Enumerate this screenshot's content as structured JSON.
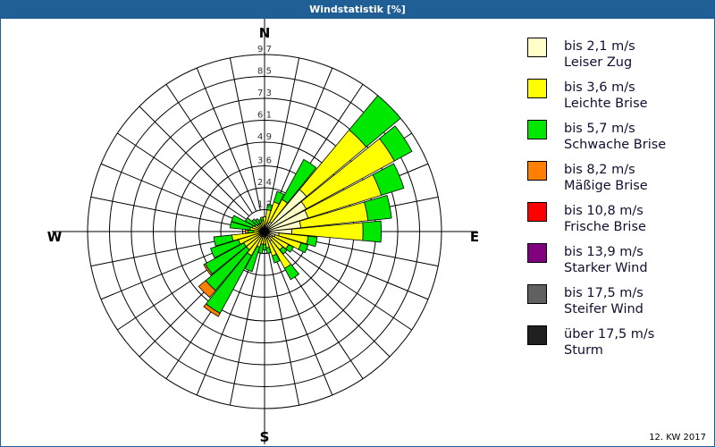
{
  "title": "Windstatistik [%]",
  "footer": "12. KW 2017",
  "chart_data": {
    "type": "wind-rose",
    "title": "Windstatistik [%]",
    "compass": {
      "n": "N",
      "e": "E",
      "s": "S",
      "w": "W"
    },
    "ring_labels": [
      "1,2",
      "2,4",
      "3,6",
      "4,9",
      "6,1",
      "7,3",
      "8,5",
      "9,7"
    ],
    "ring_values": [
      1.2,
      2.4,
      3.6,
      4.9,
      6.1,
      7.3,
      8.5,
      9.7
    ],
    "rmax": 9.7,
    "sector_count": 32,
    "classes": [
      {
        "range": "bis 2,1 m/s",
        "name": "Leiser Zug",
        "color": "#ffffc8"
      },
      {
        "range": "bis 3,6 m/s",
        "name": "Leichte Brise",
        "color": "#ffff00"
      },
      {
        "range": "bis 5,7 m/s",
        "name": "Schwache Brise",
        "color": "#00e800"
      },
      {
        "range": "bis 8,2 m/s",
        "name": "Mäßige Brise",
        "color": "#ff8000"
      },
      {
        "range": "bis 10,8 m/s",
        "name": "Frische Brise",
        "color": "#ff0000"
      },
      {
        "range": "bis 13,9 m/s",
        "name": "Starker Wind",
        "color": "#800080"
      },
      {
        "range": "bis 17,5 m/s",
        "name": "Steifer Wind",
        "color": "#606060"
      },
      {
        "range": "über 17,5 m/s",
        "name": "Sturm",
        "color": "#202020"
      }
    ],
    "sectors": [
      {
        "dir": 0,
        "values": [
          0.3,
          0.5,
          0.0,
          0.0
        ]
      },
      {
        "dir": 11.25,
        "values": [
          0.4,
          0.8,
          0.3,
          0.0
        ]
      },
      {
        "dir": 22.5,
        "values": [
          0.5,
          1.2,
          0.6,
          0.0
        ]
      },
      {
        "dir": 33.75,
        "values": [
          0.6,
          1.4,
          2.5,
          0.0
        ]
      },
      {
        "dir": 45,
        "values": [
          3.0,
          4.25,
          2.45,
          0.0
        ]
      },
      {
        "dir": 56.25,
        "values": [
          2.6,
          5.5,
          1.1,
          0.0
        ]
      },
      {
        "dir": 67.5,
        "values": [
          2.5,
          4.2,
          1.3,
          0.0
        ]
      },
      {
        "dir": 78.75,
        "values": [
          2.0,
          3.7,
          1.3,
          0.0
        ]
      },
      {
        "dir": 90,
        "values": [
          1.5,
          3.9,
          1.0,
          0.0
        ]
      },
      {
        "dir": 101.25,
        "values": [
          0.8,
          1.6,
          0.5,
          0.0
        ]
      },
      {
        "dir": 112.5,
        "values": [
          0.6,
          1.5,
          0.4,
          0.0
        ]
      },
      {
        "dir": 123.75,
        "values": [
          0.5,
          1.0,
          0.3,
          0.0
        ]
      },
      {
        "dir": 135,
        "values": [
          0.4,
          0.9,
          0.3,
          0.0
        ]
      },
      {
        "dir": 146.25,
        "values": [
          0.6,
          1.7,
          0.7,
          0.0
        ]
      },
      {
        "dir": 157.5,
        "values": [
          0.4,
          1.0,
          0.4,
          0.0
        ]
      },
      {
        "dir": 168.75,
        "values": [
          0.3,
          0.6,
          0.3,
          0.0
        ]
      },
      {
        "dir": 180,
        "values": [
          0.2,
          0.5,
          0.3,
          0.0
        ]
      },
      {
        "dir": 191.25,
        "values": [
          0.2,
          0.5,
          0.5,
          0.0
        ]
      },
      {
        "dir": 202.5,
        "values": [
          0.3,
          0.6,
          1.4,
          0.0
        ]
      },
      {
        "dir": 213.75,
        "values": [
          0.3,
          1.2,
          3.6,
          0.2
        ]
      },
      {
        "dir": 225,
        "values": [
          0.3,
          1.0,
          2.9,
          0.5
        ]
      },
      {
        "dir": 236.25,
        "values": [
          0.3,
          1.0,
          2.4,
          0.1
        ]
      },
      {
        "dir": 247.5,
        "values": [
          0.3,
          1.2,
          1.6,
          0.0
        ]
      },
      {
        "dir": 258.75,
        "values": [
          0.3,
          1.5,
          1.0,
          0.0
        ]
      },
      {
        "dir": 270,
        "values": [
          0.2,
          0.4,
          0.3,
          0.15
        ]
      },
      {
        "dir": 281.25,
        "values": [
          0.2,
          0.6,
          1.1,
          0.0
        ]
      },
      {
        "dir": 292.5,
        "values": [
          0.2,
          0.5,
          1.2,
          0.0
        ]
      },
      {
        "dir": 303.75,
        "values": [
          0.2,
          0.4,
          0.6,
          0.0
        ]
      },
      {
        "dir": 315,
        "values": [
          0.2,
          0.3,
          0.4,
          0.0
        ]
      },
      {
        "dir": 326.25,
        "values": [
          0.2,
          0.3,
          0.3,
          0.0
        ]
      },
      {
        "dir": 337.5,
        "values": [
          0.2,
          0.3,
          0.2,
          0.0
        ]
      },
      {
        "dir": 348.75,
        "values": [
          0.2,
          0.4,
          0.2,
          0.0
        ]
      }
    ]
  }
}
